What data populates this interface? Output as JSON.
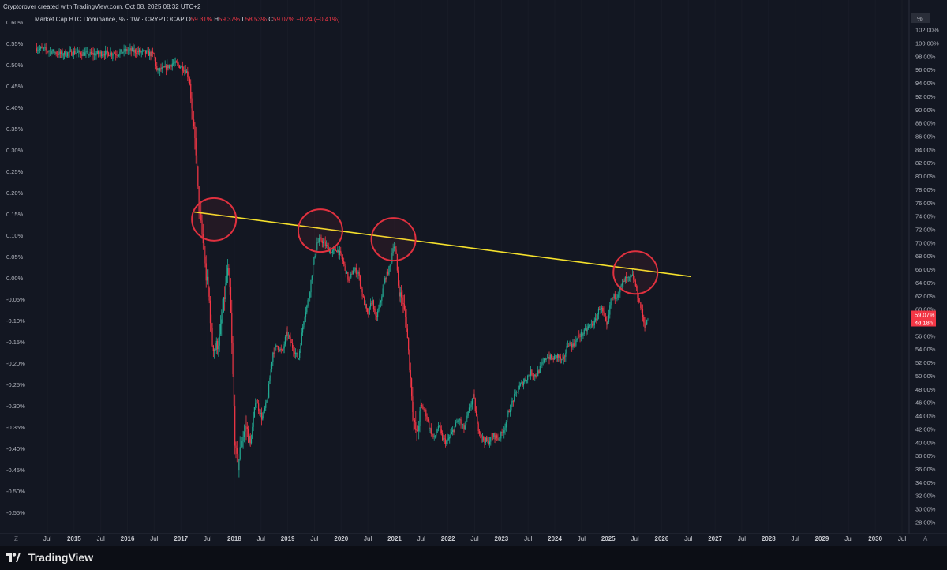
{
  "header": {
    "text": "Cryptorover created with TradingView.com, Oct 08, 2025 08:32 UTC+2"
  },
  "legend": {
    "title": "Market Cap BTC Dominance, % · 1W · CRYPTOCAP",
    "o_label": "O",
    "o_value": "59.31%",
    "h_label": "H",
    "h_value": "59.37%",
    "l_label": "L",
    "l_value": "58.53%",
    "c_label": "C",
    "c_value": "59.07%",
    "change": "−0.24 (−0.41%)"
  },
  "right_scale": {
    "unit_label": "%",
    "price_badge": "59.07%",
    "countdown_badge": "4d 18h"
  },
  "scale_buttons": {
    "left": "Z",
    "right": "A"
  },
  "footer": {
    "brand": "TradingView"
  },
  "colors": {
    "background": "#131722",
    "up": "#22ab94",
    "down": "#f23645",
    "trendline": "#f5e12c",
    "circle": "#e0313f"
  },
  "chart_data": {
    "type": "candlestick",
    "title": "Market Cap BTC Dominance, %",
    "interval": "1W",
    "left_axis": {
      "ticks": [
        "0.60%",
        "0.55%",
        "0.50%",
        "0.45%",
        "0.40%",
        "0.35%",
        "0.30%",
        "0.25%",
        "0.20%",
        "0.15%",
        "0.10%",
        "0.05%",
        "0.00%",
        "-0.05%",
        "-0.10%",
        "-0.15%",
        "-0.20%",
        "-0.25%",
        "-0.30%",
        "-0.35%",
        "-0.40%",
        "-0.45%",
        "-0.50%",
        "-0.55%"
      ]
    },
    "right_axis": {
      "range": [
        27,
        103
      ],
      "ticks": [
        "102.00%",
        "100.00%",
        "98.00%",
        "96.00%",
        "94.00%",
        "92.00%",
        "90.00%",
        "88.00%",
        "86.00%",
        "84.00%",
        "82.00%",
        "80.00%",
        "78.00%",
        "76.00%",
        "74.00%",
        "72.00%",
        "70.00%",
        "68.00%",
        "66.00%",
        "64.00%",
        "62.00%",
        "60.00%",
        "58.00%",
        "56.00%",
        "54.00%",
        "52.00%",
        "50.00%",
        "48.00%",
        "46.00%",
        "44.00%",
        "42.00%",
        "40.00%",
        "38.00%",
        "36.00%",
        "34.00%",
        "32.00%",
        "30.00%",
        "28.00%"
      ]
    },
    "x_axis": {
      "range": [
        2014.5,
        2031.3
      ],
      "ticks": [
        {
          "label": "Jul",
          "t": 2014.5
        },
        {
          "label": "2015",
          "t": 2015.0
        },
        {
          "label": "Jul",
          "t": 2015.5
        },
        {
          "label": "2016",
          "t": 2016.0
        },
        {
          "label": "Jul",
          "t": 2016.5
        },
        {
          "label": "2017",
          "t": 2017.0
        },
        {
          "label": "Jul",
          "t": 2017.5
        },
        {
          "label": "2018",
          "t": 2018.0
        },
        {
          "label": "Jul",
          "t": 2018.5
        },
        {
          "label": "2019",
          "t": 2019.0
        },
        {
          "label": "Jul",
          "t": 2019.5
        },
        {
          "label": "2020",
          "t": 2020.0
        },
        {
          "label": "Jul",
          "t": 2020.5
        },
        {
          "label": "2021",
          "t": 2021.0
        },
        {
          "label": "Jul",
          "t": 2021.5
        },
        {
          "label": "2022",
          "t": 2022.0
        },
        {
          "label": "Jul",
          "t": 2022.5
        },
        {
          "label": "2023",
          "t": 2023.0
        },
        {
          "label": "Jul",
          "t": 2023.5
        },
        {
          "label": "2024",
          "t": 2024.0
        },
        {
          "label": "Jul",
          "t": 2024.5
        },
        {
          "label": "2025",
          "t": 2025.0
        },
        {
          "label": "Jul",
          "t": 2025.5
        },
        {
          "label": "2026",
          "t": 2026.0
        },
        {
          "label": "Jul",
          "t": 2026.5
        },
        {
          "label": "2027",
          "t": 2027.0
        },
        {
          "label": "Jul",
          "t": 2027.5
        },
        {
          "label": "2028",
          "t": 2028.0
        },
        {
          "label": "Jul",
          "t": 2028.5
        },
        {
          "label": "2029",
          "t": 2029.0
        },
        {
          "label": "Jul",
          "t": 2029.5
        },
        {
          "label": "2030",
          "t": 2030.0
        },
        {
          "label": "Jul",
          "t": 2030.5
        }
      ]
    },
    "price_keypoints": [
      [
        2014.3,
        99.2
      ],
      [
        2014.6,
        98.7
      ],
      [
        2014.75,
        98.3
      ],
      [
        2015.0,
        98.6
      ],
      [
        2015.3,
        98.3
      ],
      [
        2015.55,
        98.5
      ],
      [
        2015.8,
        98.4
      ],
      [
        2016.0,
        98.9
      ],
      [
        2016.3,
        98.6
      ],
      [
        2016.5,
        98.2
      ],
      [
        2016.55,
        95.8
      ],
      [
        2016.7,
        96.2
      ],
      [
        2016.85,
        97.0
      ],
      [
        2017.0,
        96.5
      ],
      [
        2017.1,
        95.8
      ],
      [
        2017.16,
        94.6
      ],
      [
        2017.22,
        88.0
      ],
      [
        2017.28,
        84.0
      ],
      [
        2017.33,
        76.0
      ],
      [
        2017.37,
        73.0
      ],
      [
        2017.42,
        69.5
      ],
      [
        2017.47,
        65.0
      ],
      [
        2017.52,
        62.5
      ],
      [
        2017.58,
        55.0
      ],
      [
        2017.64,
        54.0
      ],
      [
        2017.72,
        55.5
      ],
      [
        2017.82,
        62.0
      ],
      [
        2017.87,
        66.0
      ],
      [
        2017.92,
        62.5
      ],
      [
        2017.96,
        53.0
      ],
      [
        2018.02,
        38.5
      ],
      [
        2018.07,
        36.5
      ],
      [
        2018.14,
        40.5
      ],
      [
        2018.22,
        42.5
      ],
      [
        2018.3,
        39.5
      ],
      [
        2018.4,
        46.5
      ],
      [
        2018.52,
        43.5
      ],
      [
        2018.62,
        46.5
      ],
      [
        2018.72,
        53.5
      ],
      [
        2018.8,
        54.5
      ],
      [
        2018.9,
        53.5
      ],
      [
        2018.98,
        56.5
      ],
      [
        2019.08,
        54.5
      ],
      [
        2019.2,
        52.5
      ],
      [
        2019.3,
        58.5
      ],
      [
        2019.4,
        62.0
      ],
      [
        2019.47,
        66.5
      ],
      [
        2019.55,
        70.0
      ],
      [
        2019.62,
        70.5
      ],
      [
        2019.72,
        69.5
      ],
      [
        2019.82,
        68.5
      ],
      [
        2019.92,
        69.0
      ],
      [
        2020.0,
        68.0
      ],
      [
        2020.08,
        66.0
      ],
      [
        2020.15,
        64.0
      ],
      [
        2020.22,
        66.0
      ],
      [
        2020.32,
        65.5
      ],
      [
        2020.4,
        62.0
      ],
      [
        2020.5,
        59.0
      ],
      [
        2020.58,
        61.5
      ],
      [
        2020.65,
        58.5
      ],
      [
        2020.72,
        60.5
      ],
      [
        2020.82,
        64.5
      ],
      [
        2020.92,
        66.5
      ],
      [
        2020.98,
        70.0
      ],
      [
        2021.03,
        68.0
      ],
      [
        2021.08,
        62.5
      ],
      [
        2021.14,
        61.5
      ],
      [
        2021.22,
        58.0
      ],
      [
        2021.3,
        49.5
      ],
      [
        2021.36,
        43.0
      ],
      [
        2021.42,
        41.0
      ],
      [
        2021.5,
        45.5
      ],
      [
        2021.58,
        44.5
      ],
      [
        2021.66,
        42.0
      ],
      [
        2021.74,
        40.5
      ],
      [
        2021.82,
        42.5
      ],
      [
        2021.9,
        40.5
      ],
      [
        2021.98,
        40.0
      ],
      [
        2022.08,
        41.5
      ],
      [
        2022.2,
        43.5
      ],
      [
        2022.3,
        42.0
      ],
      [
        2022.4,
        45.0
      ],
      [
        2022.48,
        47.0
      ],
      [
        2022.55,
        42.5
      ],
      [
        2022.65,
        40.5
      ],
      [
        2022.75,
        40.0
      ],
      [
        2022.85,
        41.0
      ],
      [
        2022.95,
        40.5
      ],
      [
        2023.05,
        42.0
      ],
      [
        2023.15,
        45.0
      ],
      [
        2023.25,
        47.0
      ],
      [
        2023.35,
        48.5
      ],
      [
        2023.45,
        49.5
      ],
      [
        2023.55,
        50.5
      ],
      [
        2023.65,
        50.0
      ],
      [
        2023.75,
        51.5
      ],
      [
        2023.85,
        53.0
      ],
      [
        2023.95,
        52.5
      ],
      [
        2024.05,
        53.0
      ],
      [
        2024.15,
        52.0
      ],
      [
        2024.25,
        55.0
      ],
      [
        2024.35,
        54.5
      ],
      [
        2024.45,
        56.0
      ],
      [
        2024.55,
        56.5
      ],
      [
        2024.65,
        57.5
      ],
      [
        2024.75,
        58.0
      ],
      [
        2024.85,
        60.5
      ],
      [
        2024.92,
        59.0
      ],
      [
        2024.98,
        57.0
      ],
      [
        2025.05,
        61.5
      ],
      [
        2025.15,
        62.0
      ],
      [
        2025.25,
        63.5
      ],
      [
        2025.32,
        64.5
      ],
      [
        2025.4,
        64.5
      ],
      [
        2025.45,
        65.0
      ],
      [
        2025.5,
        64.0
      ],
      [
        2025.55,
        62.0
      ],
      [
        2025.62,
        60.0
      ],
      [
        2025.68,
        57.5
      ],
      [
        2025.72,
        58.0
      ],
      [
        2025.76,
        59.07
      ]
    ],
    "trendline": {
      "start": [
        2017.25,
        74.6
      ],
      "end": [
        2026.55,
        64.9
      ]
    },
    "circled_touches": [
      {
        "t": 2017.62,
        "v": 73.5
      },
      {
        "t": 2019.61,
        "v": 71.8
      },
      {
        "t": 2020.98,
        "v": 70.5
      },
      {
        "t": 2025.51,
        "v": 65.5
      }
    ],
    "last_close": 59.07
  }
}
